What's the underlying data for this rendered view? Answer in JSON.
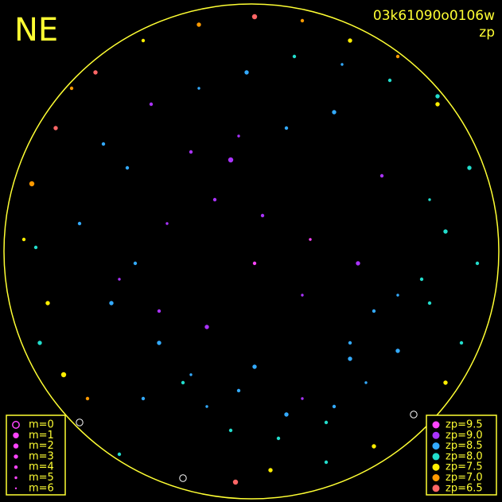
{
  "chart_data": {
    "type": "scatter",
    "title": "03k61090o0106w",
    "subtitle": "zp",
    "annotation": "NE",
    "xlim": [
      0,
      631
    ],
    "ylim": [
      631,
      0
    ],
    "magnitude_legend": [
      {
        "value": 0,
        "label": "m=0"
      },
      {
        "value": 1,
        "label": "m=1"
      },
      {
        "value": 2,
        "label": "m=2"
      },
      {
        "value": 3,
        "label": "m=3"
      },
      {
        "value": 4,
        "label": "m=4"
      },
      {
        "value": 5,
        "label": "m=5"
      },
      {
        "value": 6,
        "label": "m=6"
      }
    ],
    "zp_legend": [
      {
        "value": 9.5,
        "label": "zp=9.5",
        "color": "#ff44ff"
      },
      {
        "value": 9.0,
        "label": "zp=9.0",
        "color": "#aa33ff"
      },
      {
        "value": 8.5,
        "label": "zp=8.5",
        "color": "#33aaff"
      },
      {
        "value": 8.0,
        "label": "zp=8.0",
        "color": "#22ddcc"
      },
      {
        "value": 7.5,
        "label": "zp=7.5",
        "color": "#ffee00"
      },
      {
        "value": 7.0,
        "label": "zp=7.0",
        "color": "#ff9900"
      },
      {
        "value": 6.5,
        "label": "zp=6.5",
        "color": "#ff6666"
      }
    ],
    "stars": {
      "x": [
        230,
        296,
        340,
        410,
        470,
        520,
        150,
        100,
        560,
        580,
        60,
        45,
        40,
        70,
        90,
        120,
        180,
        250,
        320,
        380,
        440,
        500,
        550,
        590,
        600,
        30,
        50,
        80,
        110,
        140,
        170,
        200,
        230,
        260,
        290,
        320,
        350,
        380,
        410,
        440,
        470,
        500,
        530,
        560,
        210,
        270,
        330,
        390,
        450,
        160,
        240,
        300,
        360,
        420,
        480,
        540,
        130,
        190,
        250,
        310,
        370,
        430,
        490,
        550,
        100,
        150,
        200,
        260,
        320,
        380,
        440,
        500,
        180,
        240,
        300,
        360,
        420,
        460,
        540,
        290
      ],
      "y": [
        30,
        25,
        40,
        50,
        70,
        110,
        60,
        100,
        150,
        200,
        250,
        320,
        400,
        470,
        520,
        540,
        580,
        600,
        610,
        605,
        580,
        560,
        500,
        420,
        300,
        330,
        200,
        160,
        130,
        250,
        300,
        200,
        150,
        120,
        90,
        170,
        80,
        130,
        100,
        180,
        240,
        260,
        280,
        340,
        350,
        380,
        360,
        330,
        300,
        420,
        440,
        460,
        470,
        490,
        410,
        380,
        450,
        500,
        520,
        540,
        560,
        550,
        530,
        510,
        350,
        280,
        240,
        220,
        300,
        260,
        200,
        190,
        130,
        160,
        140,
        110,
        120,
        150,
        250,
        430
      ],
      "m": [
        0,
        2,
        3,
        4,
        3,
        0,
        4,
        0,
        3,
        4,
        3,
        4,
        2,
        3,
        4,
        3,
        4,
        3,
        2,
        4,
        3,
        4,
        3,
        3,
        4,
        4,
        3,
        2,
        4,
        3,
        4,
        3,
        4,
        5,
        4,
        3,
        4,
        5,
        4,
        3,
        4,
        5,
        4,
        3,
        5,
        4,
        4,
        5,
        3,
        4,
        4,
        5,
        4,
        3,
        4,
        5,
        4,
        4,
        5,
        3,
        4,
        5,
        4,
        3,
        4,
        5,
        4,
        3,
        4,
        5,
        4,
        3,
        4,
        5,
        4,
        3,
        4,
        5,
        4,
        2
      ],
      "zp": [
        7.0,
        6.5,
        7.5,
        8.0,
        7.5,
        7.5,
        8.0,
        7.5,
        7.5,
        8.0,
        7.5,
        8.0,
        7.0,
        6.5,
        7.0,
        6.5,
        7.5,
        7.0,
        6.5,
        7.0,
        7.5,
        7.0,
        7.5,
        8.0,
        8.0,
        7.5,
        8.0,
        7.5,
        7.0,
        8.5,
        8.5,
        8.5,
        8.0,
        8.5,
        8.0,
        8.5,
        8.0,
        9.0,
        8.0,
        8.5,
        8.5,
        8.5,
        8.0,
        8.0,
        9.0,
        9.0,
        9.0,
        9.5,
        9.0,
        8.5,
        9.0,
        9.0,
        8.5,
        8.5,
        9.0,
        8.0,
        8.5,
        9.0,
        8.5,
        8.5,
        8.0,
        8.5,
        8.0,
        8.0,
        8.5,
        9.0,
        9.0,
        9.0,
        9.5,
        9.0,
        8.5,
        8.5,
        8.5,
        8.5,
        8.5,
        8.5,
        8.5,
        8.5,
        8.0,
        9.0
      ]
    }
  }
}
